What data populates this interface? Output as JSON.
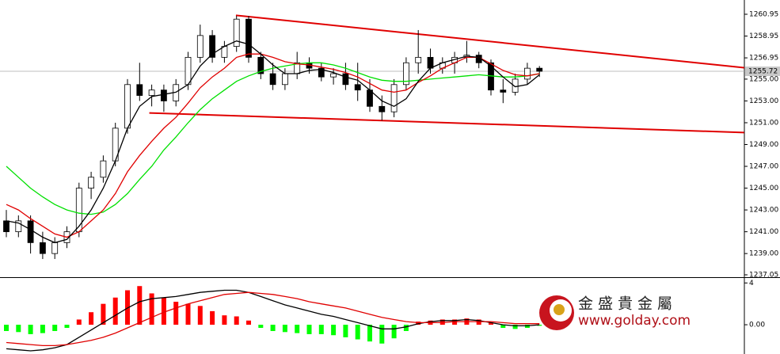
{
  "chart_data": [
    {
      "type": "candlestick",
      "ylim": [
        1237.05,
        1260.95
      ],
      "yticks": [
        1260.95,
        1258.95,
        1256.95,
        {
          "value": 1255,
          "label": "1255.00"
        },
        {
          "value": 1253,
          "label": "1253.00"
        },
        {
          "value": 1251,
          "label": "1251.00"
        },
        {
          "value": 1249,
          "label": "1249.00"
        },
        {
          "value": 1247,
          "label": "1247.00"
        },
        {
          "value": 1245,
          "label": "1245.00"
        },
        {
          "value": 1243,
          "label": "1243.00"
        },
        {
          "value": 1241,
          "label": "1241.00"
        },
        {
          "value": 1239,
          "label": "1239.00"
        },
        1237.05
      ],
      "open": [
        1242,
        1241,
        1242,
        1240,
        1239,
        1240,
        1241,
        1245,
        1246,
        1247.5,
        1250.5,
        1254.5,
        1253.5,
        1254,
        1253,
        1254.5,
        1257,
        1259,
        1257,
        1258,
        1260.5,
        1257,
        1255.5,
        1254.5,
        1255.5,
        1256.5,
        1256,
        1255.2,
        1255.5,
        1254.5,
        1254,
        1252.5,
        1252,
        1254.5,
        1256.5,
        1257,
        1256,
        1256.5,
        1257,
        1257.2,
        1256.5,
        1254,
        1253.8,
        1255,
        1256
      ],
      "high": [
        1243,
        1242.5,
        1242.5,
        1241,
        1240.5,
        1241.5,
        1245.5,
        1246.5,
        1248,
        1251,
        1255,
        1256.5,
        1254.5,
        1254.5,
        1255,
        1257.5,
        1260,
        1259.5,
        1258.5,
        1260.8,
        1260.8,
        1257.5,
        1256.5,
        1256,
        1257.5,
        1257,
        1256.5,
        1256,
        1256.5,
        1256.5,
        1255,
        1253.5,
        1255,
        1257,
        1259.5,
        1257.8,
        1257,
        1257.5,
        1258.5,
        1257.5,
        1256.8,
        1255,
        1255.5,
        1256.5,
        1256.2
      ],
      "low": [
        1240.5,
        1240.5,
        1239,
        1238.5,
        1238.5,
        1239.5,
        1240.5,
        1244,
        1245.5,
        1247,
        1250,
        1253,
        1252.5,
        1252,
        1252.5,
        1254,
        1256.5,
        1256.5,
        1256.5,
        1257.5,
        1256.5,
        1255,
        1254,
        1254,
        1255,
        1255.5,
        1254.8,
        1254.5,
        1254,
        1253,
        1252,
        1251.2,
        1251.5,
        1254,
        1255.5,
        1255.5,
        1255.5,
        1255.5,
        1256.5,
        1256,
        1253.5,
        1252.8,
        1253.5,
        1254.5,
        1255.2
      ],
      "close": [
        1241,
        1242,
        1240,
        1239,
        1240,
        1241,
        1245,
        1246,
        1247.5,
        1250.5,
        1254.5,
        1253.5,
        1254,
        1253,
        1254.5,
        1257,
        1259,
        1257,
        1258,
        1260.5,
        1257,
        1255.5,
        1254.5,
        1255.5,
        1256.5,
        1256,
        1255.2,
        1255.5,
        1254.5,
        1254,
        1252.5,
        1252,
        1254.5,
        1256.5,
        1257,
        1256,
        1256.5,
        1257,
        1257.2,
        1256.5,
        1254,
        1253.8,
        1255,
        1256,
        1255.72
      ],
      "series": [
        {
          "color": "#00e000",
          "values": [
            1247,
            1246,
            1245,
            1244.2,
            1243.5,
            1243,
            1242.7,
            1242.6,
            1242.8,
            1243.5,
            1244.5,
            1245.8,
            1247,
            1248.5,
            1249.7,
            1251,
            1252.2,
            1253.2,
            1254,
            1254.8,
            1255.3,
            1255.7,
            1256,
            1256.2,
            1256.4,
            1256.5,
            1256.5,
            1256.3,
            1256,
            1255.6,
            1255.2,
            1254.9,
            1254.8,
            1254.8,
            1254.9,
            1255,
            1255.1,
            1255.2,
            1255.3,
            1255.4,
            1255.3,
            1255.2,
            1255.2,
            1255.3,
            1255.5
          ]
        },
        {
          "color": "#e00000",
          "values": [
            1243.5,
            1243,
            1242.2,
            1241.5,
            1240.8,
            1240.5,
            1241,
            1242,
            1243,
            1244.5,
            1246.5,
            1248,
            1249.3,
            1250.5,
            1251.5,
            1252.8,
            1254.2,
            1255.2,
            1256,
            1257,
            1257.3,
            1257.3,
            1257,
            1256.6,
            1256.4,
            1256.3,
            1256.1,
            1255.9,
            1255.6,
            1255.2,
            1254.6,
            1254,
            1253.8,
            1254,
            1254.7,
            1255.3,
            1256,
            1256.5,
            1257,
            1257,
            1256.4,
            1255.8,
            1255.4,
            1255.3,
            1255.5
          ]
        },
        {
          "color": "#000000",
          "values": [
            1242,
            1241.8,
            1241.2,
            1240.5,
            1240,
            1240.3,
            1241.5,
            1243,
            1245,
            1247.5,
            1250.5,
            1252.5,
            1253.4,
            1253.6,
            1253.8,
            1254.5,
            1256.2,
            1257.3,
            1258,
            1258.5,
            1258.2,
            1257.3,
            1256.3,
            1255.5,
            1255.5,
            1255.8,
            1255.9,
            1255.6,
            1255.2,
            1254.9,
            1254,
            1253,
            1252.5,
            1253.2,
            1254.8,
            1256,
            1256.5,
            1256.8,
            1257.1,
            1257,
            1256.2,
            1255.2,
            1254.3,
            1254.5,
            1255.4
          ]
        }
      ],
      "trendlines": [
        {
          "color": "#e00000",
          "x": [
            18.95,
            60.9
          ],
          "values": [
            1260.85,
            1256.05
          ]
        },
        {
          "color": "#e00000",
          "x": [
            11.8,
            60.9
          ],
          "values": [
            1251.9,
            1250.1
          ]
        }
      ],
      "last_price": 1255.72
    },
    {
      "type": "macd",
      "ylim": [
        -2.8,
        4.4
      ],
      "yticks": [
        4,
        {
          "value": 0,
          "label": "0.00"
        }
      ],
      "values": [
        -0.6,
        -0.7,
        -0.9,
        -0.8,
        -0.6,
        -0.3,
        0.5,
        1.2,
        2.0,
        2.6,
        3.3,
        3.7,
        3.0,
        2.6,
        2.2,
        2.0,
        1.8,
        1.3,
        0.9,
        0.8,
        0.4,
        -0.3,
        -0.6,
        -0.7,
        -0.8,
        -0.9,
        -0.9,
        -1.0,
        -1.2,
        -1.4,
        -1.6,
        -1.8,
        -1.3,
        -0.6,
        0.3,
        0.4,
        0.5,
        0.5,
        0.6,
        0.5,
        0.2,
        -0.3,
        -0.4,
        -0.3,
        -0.1
      ],
      "series": [
        {
          "color": "#000000",
          "values": [
            -2.3,
            -2.4,
            -2.5,
            -2.4,
            -2.2,
            -1.9,
            -1.2,
            -0.5,
            0.2,
            0.9,
            1.6,
            2.2,
            2.5,
            2.6,
            2.7,
            2.9,
            3.1,
            3.2,
            3.3,
            3.3,
            3.1,
            2.7,
            2.3,
            1.9,
            1.6,
            1.3,
            1.0,
            0.8,
            0.5,
            0.2,
            -0.1,
            -0.4,
            -0.4,
            -0.2,
            0.1,
            0.3,
            0.4,
            0.4,
            0.5,
            0.4,
            0.2,
            0.0,
            -0.1,
            -0.1,
            0.0
          ]
        },
        {
          "color": "#e00000",
          "values": [
            -1.7,
            -1.8,
            -1.9,
            -2.0,
            -2.0,
            -1.9,
            -1.7,
            -1.5,
            -1.2,
            -0.8,
            -0.3,
            0.2,
            0.7,
            1.2,
            1.6,
            2.0,
            2.3,
            2.6,
            2.9,
            3.0,
            3.1,
            3.0,
            2.9,
            2.7,
            2.5,
            2.2,
            2.0,
            1.8,
            1.6,
            1.3,
            1.0,
            0.7,
            0.5,
            0.3,
            0.2,
            0.2,
            0.2,
            0.3,
            0.3,
            0.3,
            0.3,
            0.2,
            0.1,
            0.1,
            0.1
          ]
        }
      ],
      "pos_color": "#ff0000",
      "neg_color": "#00ff00"
    }
  ],
  "logo": {
    "name": "金盛貴金屬",
    "url": "www.golday.com"
  }
}
